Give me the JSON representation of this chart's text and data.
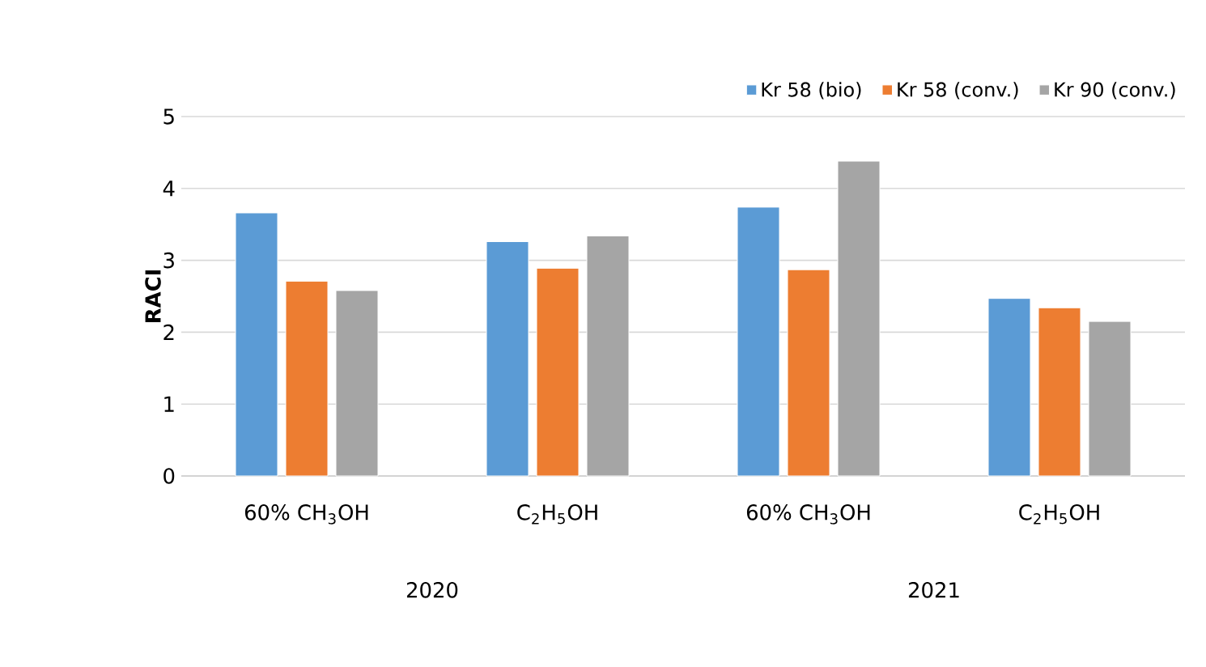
{
  "chart_data": {
    "type": "bar",
    "ylabel": "RACI",
    "categories": [
      "60% CH$_{3}$OH",
      "C$_{2}$H$_{5}$OH",
      "60% CH$_{3}$OH",
      "C$_{2}$H$_{5}$OH"
    ],
    "annotations": [
      "2020",
      "2021"
    ],
    "series": [
      {
        "name": "Kr 58 (bio)",
        "color": "#5b9bd5",
        "values": [
          3.66,
          3.26,
          3.74,
          2.47
        ]
      },
      {
        "name": "Kr 58 (conv.)",
        "color": "#ed7d31",
        "values": [
          2.71,
          2.89,
          2.87,
          2.34
        ]
      },
      {
        "name": "Kr 90 (conv.)",
        "color": "#a5a5a5",
        "values": [
          2.58,
          3.34,
          4.38,
          2.15
        ]
      }
    ],
    "ylim": [
      0,
      5
    ],
    "yticks": [
      0,
      1,
      2,
      3,
      4,
      5
    ],
    "grid": "y",
    "legend": "top right"
  }
}
